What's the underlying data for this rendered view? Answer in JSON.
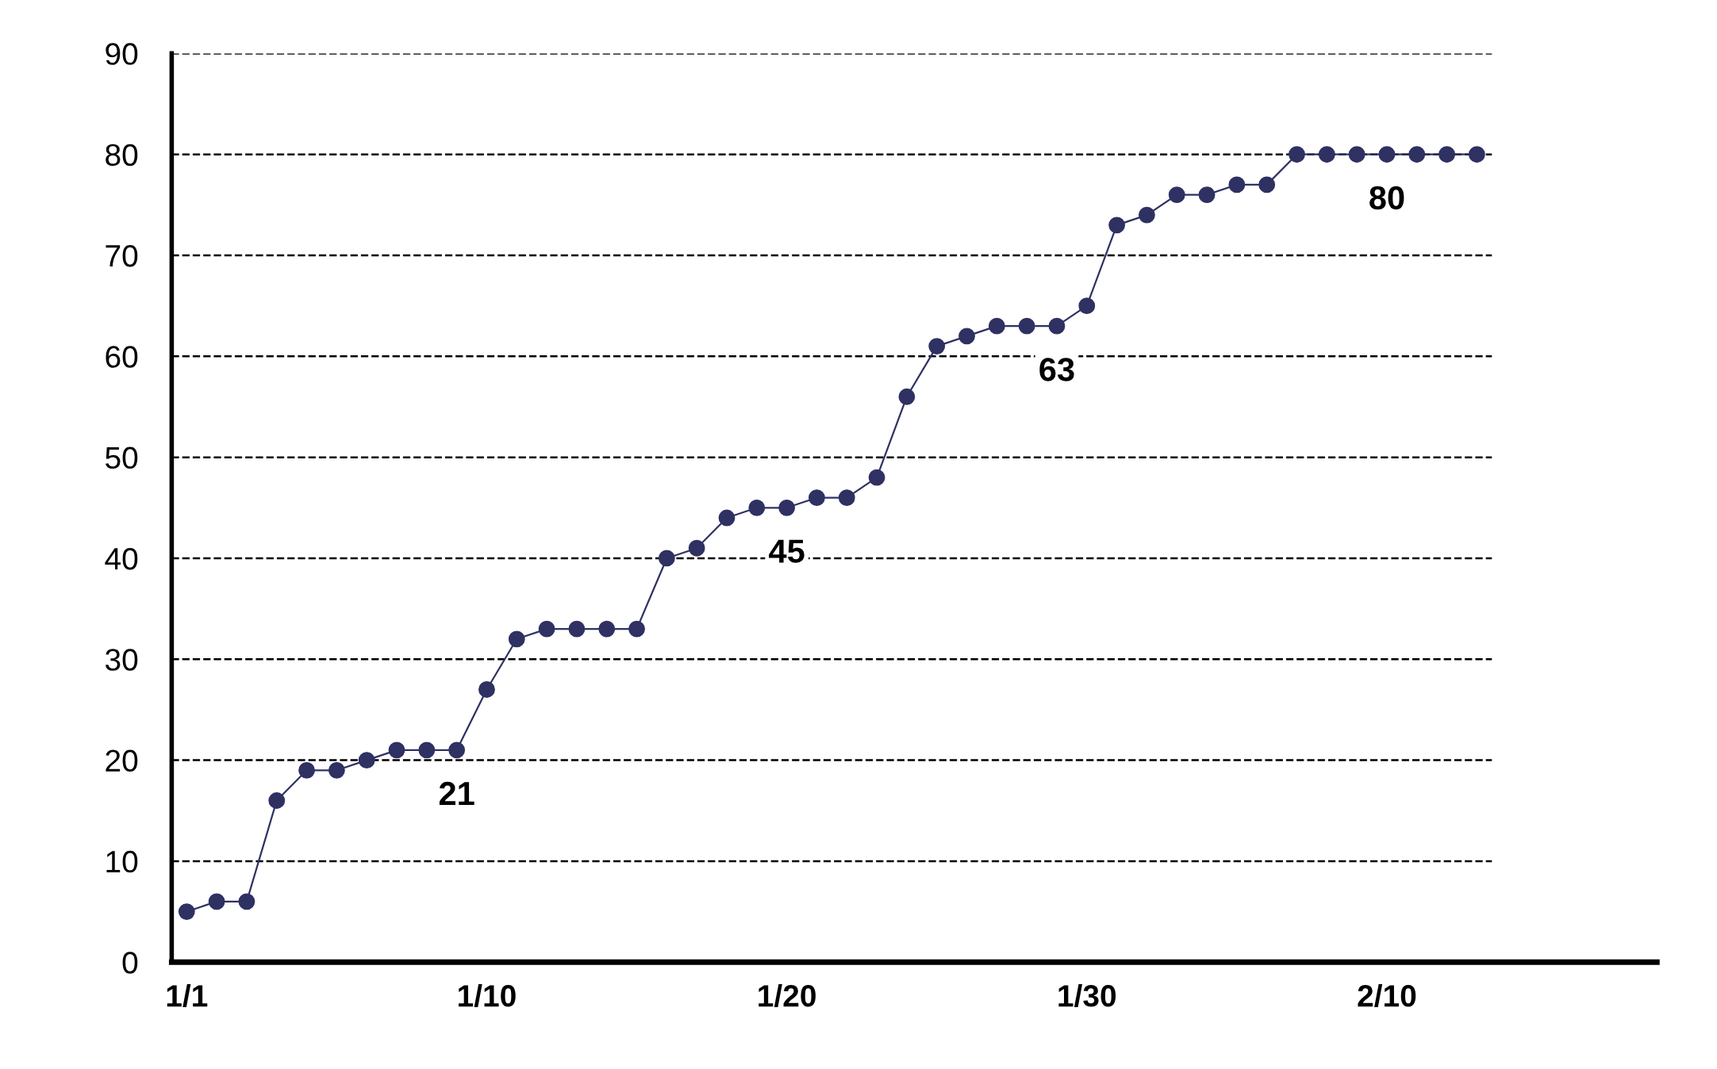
{
  "chart_data": {
    "type": "line",
    "categories": [
      "1/1",
      null,
      null,
      null,
      null,
      null,
      null,
      null,
      null,
      null,
      "1/10",
      null,
      null,
      null,
      null,
      null,
      null,
      null,
      null,
      null,
      "1/20",
      null,
      null,
      null,
      null,
      null,
      null,
      null,
      null,
      null,
      "1/30",
      null,
      null,
      null,
      null,
      null,
      null,
      null,
      null,
      null,
      "2/10",
      null,
      null,
      null
    ],
    "series": [
      {
        "color": "#2f3163",
        "values": [
          5,
          6,
          6,
          16,
          19,
          19,
          20,
          21,
          21,
          21,
          27,
          32,
          33,
          33,
          33,
          33,
          40,
          41,
          44,
          45,
          45,
          46,
          46,
          48,
          56,
          61,
          62,
          63,
          63,
          63,
          65,
          73,
          74,
          76,
          76,
          77,
          77,
          80,
          80,
          80,
          80,
          80,
          80,
          80
        ],
        "value_labels": [
          null,
          null,
          null,
          null,
          null,
          null,
          null,
          null,
          null,
          "21",
          null,
          null,
          null,
          null,
          null,
          null,
          null,
          null,
          null,
          null,
          "45",
          null,
          null,
          null,
          null,
          null,
          null,
          null,
          null,
          "63",
          null,
          null,
          null,
          null,
          null,
          null,
          null,
          null,
          null,
          null,
          "80",
          null,
          null,
          null
        ]
      }
    ],
    "ylim": [
      0,
      90
    ],
    "yticks": [
      0,
      10,
      20,
      30,
      40,
      50,
      60,
      70,
      80,
      90
    ],
    "grid": "y",
    "marker": "circle",
    "line_style": "solid",
    "legend": false
  }
}
